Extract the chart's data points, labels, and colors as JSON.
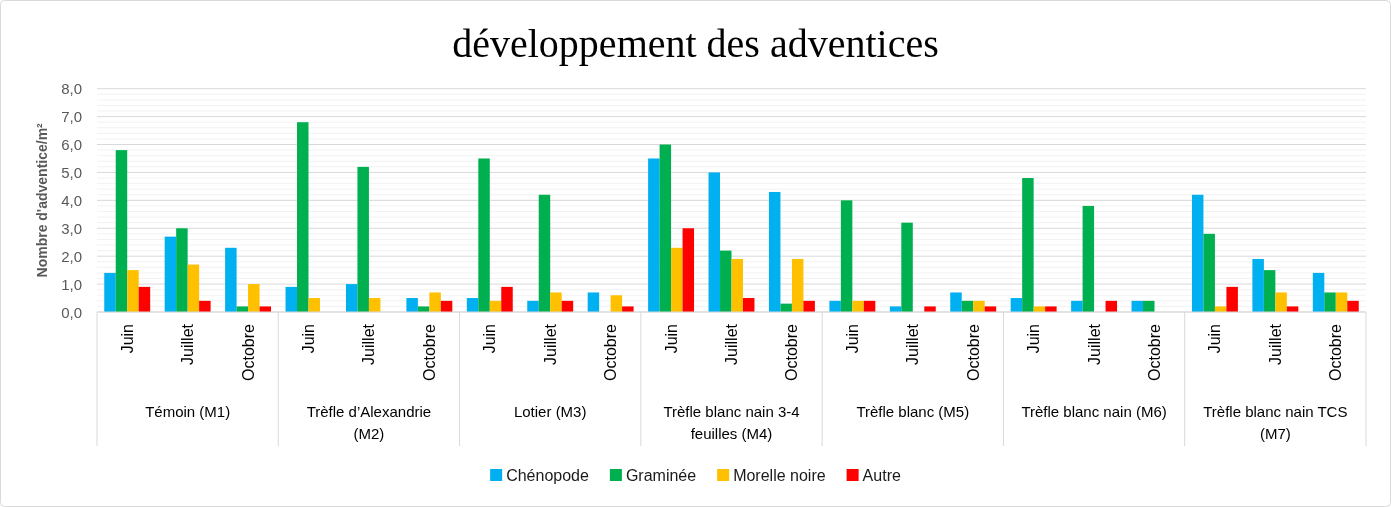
{
  "chart_data": {
    "type": "bar",
    "title": "développement des adventices",
    "ylabel": "Nombre d'adventice/m²",
    "categories": [
      "Juin",
      "Juillet",
      "Octobre",
      "Juin",
      "Juillet",
      "Octobre",
      "Juin",
      "Juillet",
      "Octobre",
      "Juin",
      "Juillet",
      "Octobre",
      "Juin",
      "Juillet",
      "Octobre",
      "Juin",
      "Juillet",
      "Octobre",
      "Juin",
      "Juillet",
      "Octobre"
    ],
    "annotations": [
      "Témoin (M1)",
      "Trèfle d’Alexandrie (M2)",
      "Lotier (M3)",
      "Trèfle blanc nain 3-4 feuilles (M4)",
      "Trèfle blanc (M5)",
      "Trèfle blanc nain (M6)",
      "Trèfle blanc nain TCS (M7)"
    ],
    "series": [
      {
        "name": "Chénopode",
        "color": "#00b0f0",
        "values": [
          1.4,
          2.7,
          2.3,
          0.9,
          1.0,
          0.5,
          0.5,
          0.4,
          0.7,
          5.5,
          5.0,
          4.3,
          0.4,
          0.2,
          0.7,
          0.5,
          0.4,
          0.4,
          4.2,
          1.9,
          1.4
        ]
      },
      {
        "name": "Graminée",
        "color": "#00b050",
        "values": [
          5.8,
          3.0,
          0.2,
          6.8,
          5.2,
          0.2,
          5.5,
          4.2,
          null,
          6.0,
          2.2,
          0.3,
          4.0,
          3.2,
          0.4,
          4.8,
          3.8,
          0.4,
          2.8,
          1.5,
          0.7
        ]
      },
      {
        "name": "Morelle noire",
        "color": "#ffc000",
        "values": [
          1.5,
          1.7,
          1.0,
          0.5,
          0.5,
          0.7,
          0.4,
          0.7,
          0.6,
          2.3,
          1.9,
          1.9,
          0.4,
          null,
          0.4,
          0.2,
          null,
          null,
          0.2,
          0.7,
          0.7
        ]
      },
      {
        "name": "Autre",
        "color": "#ff0000",
        "values": [
          0.9,
          0.4,
          0.2,
          null,
          null,
          0.4,
          0.9,
          0.4,
          0.2,
          3.0,
          0.5,
          0.4,
          0.4,
          0.2,
          0.2,
          0.2,
          0.4,
          null,
          0.9,
          0.2,
          0.4
        ]
      }
    ],
    "ylim": [
      0,
      8
    ],
    "yticks": [
      {
        "value": 0,
        "label": "0,0"
      },
      {
        "value": 0.2,
        "label": null
      },
      {
        "value": 0.4,
        "label": null
      },
      {
        "value": 0.6,
        "label": null
      },
      {
        "value": 0.8,
        "label": null
      },
      {
        "value": 1,
        "label": "1,0"
      },
      {
        "value": 1.2,
        "label": null
      },
      {
        "value": 1.4,
        "label": null
      },
      {
        "value": 1.6,
        "label": null
      },
      {
        "value": 1.8,
        "label": null
      },
      {
        "value": 2,
        "label": "2,0"
      },
      {
        "value": 2.2,
        "label": null
      },
      {
        "value": 2.4,
        "label": null
      },
      {
        "value": 2.6,
        "label": null
      },
      {
        "value": 2.8,
        "label": null
      },
      {
        "value": 3,
        "label": "3,0"
      },
      {
        "value": 3.2,
        "label": null
      },
      {
        "value": 3.4,
        "label": null
      },
      {
        "value": 3.6,
        "label": null
      },
      {
        "value": 3.8,
        "label": null
      },
      {
        "value": 4,
        "label": "4,0"
      },
      {
        "value": 4.2,
        "label": null
      },
      {
        "value": 4.4,
        "label": null
      },
      {
        "value": 4.6,
        "label": null
      },
      {
        "value": 4.8,
        "label": null
      },
      {
        "value": 5,
        "label": "5,0"
      },
      {
        "value": 5.2,
        "label": null
      },
      {
        "value": 5.4,
        "label": null
      },
      {
        "value": 5.6,
        "label": null
      },
      {
        "value": 5.8,
        "label": null
      },
      {
        "value": 6,
        "label": "6,0"
      },
      {
        "value": 6.2,
        "label": null
      },
      {
        "value": 6.4,
        "label": null
      },
      {
        "value": 6.6,
        "label": null
      },
      {
        "value": 6.8,
        "label": null
      },
      {
        "value": 7,
        "label": "7,0"
      },
      {
        "value": 7.2,
        "label": null
      },
      {
        "value": 7.4,
        "label": null
      },
      {
        "value": 7.6,
        "label": null
      },
      {
        "value": 7.8,
        "label": null
      },
      {
        "value": 8,
        "label": "8,0"
      }
    ],
    "grid": "y",
    "legend": "bottom"
  }
}
